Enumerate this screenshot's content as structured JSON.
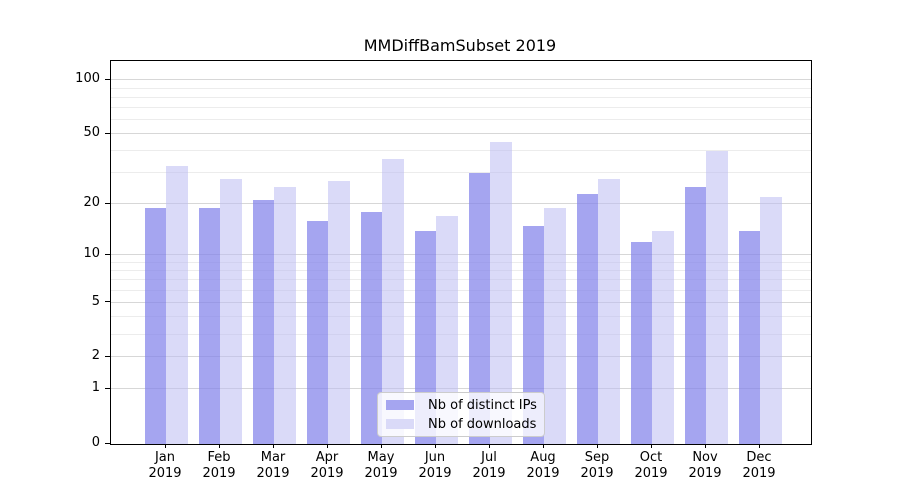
{
  "title": "MMDiffBamSubset 2019",
  "legend": {
    "items": [
      {
        "label": "Nb of distinct IPs"
      },
      {
        "label": "Nb of downloads"
      }
    ]
  },
  "chart_data": {
    "type": "bar",
    "title": "MMDiffBamSubset 2019",
    "categories": [
      "Jan 2019",
      "Feb 2019",
      "Mar 2019",
      "Apr 2019",
      "May 2019",
      "Jun 2019",
      "Jul 2019",
      "Aug 2019",
      "Sep 2019",
      "Oct 2019",
      "Nov 2019",
      "Dec 2019"
    ],
    "series": [
      {
        "name": "Nb of distinct IPs",
        "values": [
          19,
          19,
          21,
          16,
          18,
          14,
          30,
          15,
          23,
          12,
          25,
          14
        ],
        "color": "#a5a5f0",
        "fill": "rgba(130,130,234,0.72)"
      },
      {
        "name": "Nb of downloads",
        "values": [
          33,
          28,
          25,
          27,
          36,
          17,
          45,
          19,
          28,
          14,
          40,
          22
        ],
        "color": "#dadaf8",
        "fill": "rgba(188,188,242,0.55)"
      }
    ],
    "xlabel": "",
    "ylabel": "",
    "yscale": "log1p",
    "ylim": [
      0,
      128
    ],
    "y_major_ticks": [
      0,
      1,
      2,
      5,
      10,
      20,
      50,
      100
    ],
    "y_minor_gridlines": [
      3,
      4,
      6,
      7,
      8,
      9,
      30,
      40,
      60,
      70,
      80,
      90
    ],
    "grid": "horizontal",
    "legend_position": "lower center",
    "axis_color": "#000000",
    "major_grid_color": "#d7d7d7",
    "minor_grid_color": "#ececec"
  }
}
